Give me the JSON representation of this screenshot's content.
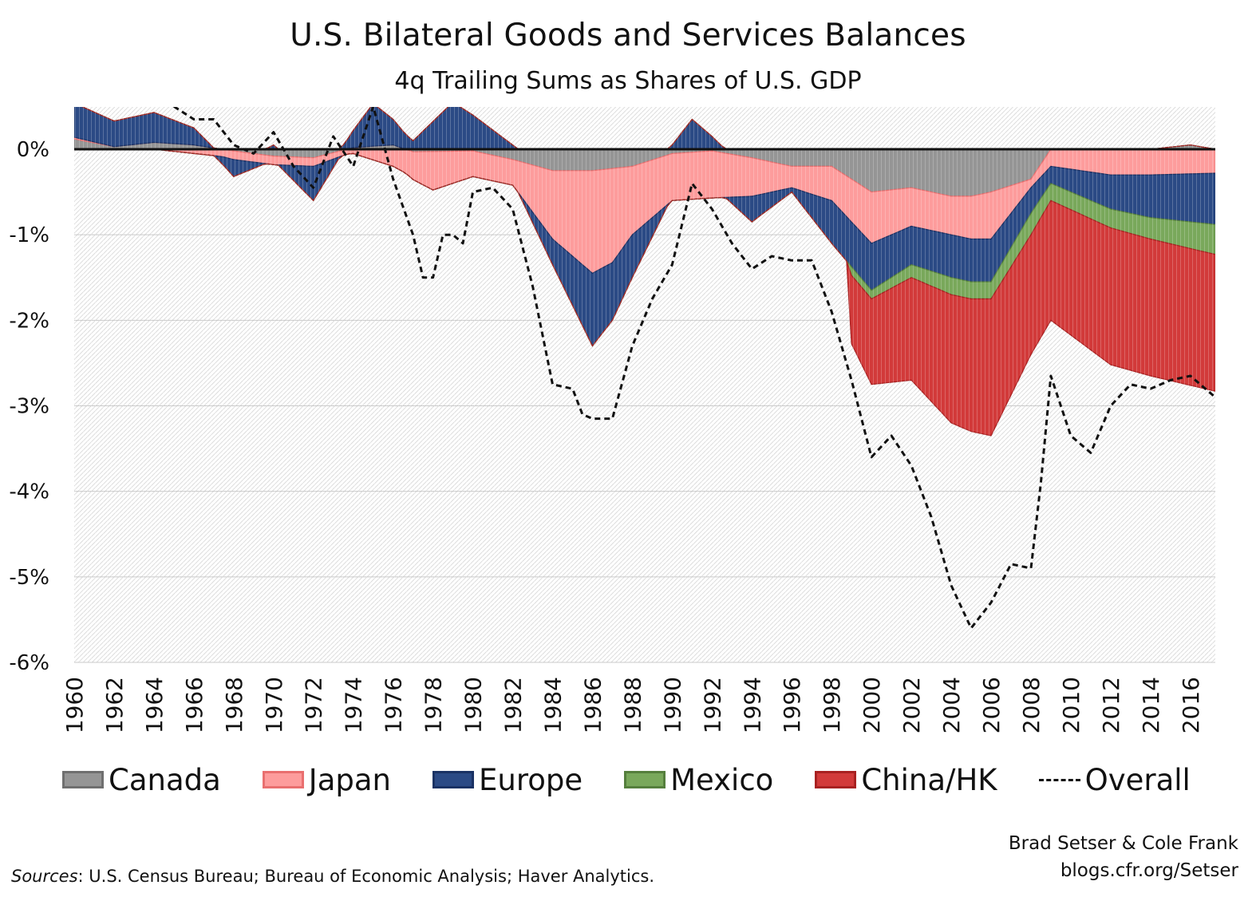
{
  "chart_data": {
    "type": "area",
    "title": "U.S. Bilateral Goods and Services Balances",
    "subtitle": "4q Trailing Sums as Shares of U.S. GDP",
    "xlabel": "",
    "ylabel": "",
    "ylim": [
      -6,
      0.5
    ],
    "xlim": [
      1960,
      2017.25
    ],
    "yticks": [
      "0%",
      "-1%",
      "-2%",
      "-3%",
      "-4%",
      "-5%",
      "-6%"
    ],
    "ytick_values": [
      0,
      -1,
      -2,
      -3,
      -4,
      -5,
      -6
    ],
    "xticks": [
      "1960",
      "1962",
      "1964",
      "1966",
      "1968",
      "1970",
      "1972",
      "1974",
      "1976",
      "1978",
      "1980",
      "1982",
      "1984",
      "1986",
      "1988",
      "1990",
      "1992",
      "1994",
      "1996",
      "1998",
      "2000",
      "2002",
      "2004",
      "2006",
      "2008",
      "2010",
      "2012",
      "2014",
      "2016"
    ],
    "stacked": true,
    "grid": true,
    "legend_position": "bottom",
    "series": [
      {
        "name": "Canada",
        "color": "#959595",
        "edge": "#6f6f6f",
        "points": [
          [
            1960,
            0.12
          ],
          [
            1962,
            0.03
          ],
          [
            1964,
            0.08
          ],
          [
            1966,
            0.05
          ],
          [
            1968,
            -0.02
          ],
          [
            1970,
            -0.08
          ],
          [
            1972,
            -0.1
          ],
          [
            1974,
            0.02
          ],
          [
            1976,
            0.05
          ],
          [
            1977,
            -0.03
          ],
          [
            1980,
            -0.02
          ],
          [
            1982,
            -0.12
          ],
          [
            1984,
            -0.25
          ],
          [
            1986,
            -0.25
          ],
          [
            1988,
            -0.2
          ],
          [
            1990,
            -0.05
          ],
          [
            1992,
            -0.02
          ],
          [
            1994,
            -0.1
          ],
          [
            1996,
            -0.2
          ],
          [
            1998,
            -0.2
          ],
          [
            2000,
            -0.5
          ],
          [
            2002,
            -0.45
          ],
          [
            2004,
            -0.55
          ],
          [
            2005,
            -0.55
          ],
          [
            2006,
            -0.5
          ],
          [
            2008,
            -0.35
          ],
          [
            2009,
            0.0
          ],
          [
            2012,
            0.0
          ],
          [
            2014,
            0.0
          ],
          [
            2016,
            0.05
          ],
          [
            2017.25,
            0.0
          ]
        ]
      },
      {
        "name": "Japan",
        "color": "#fd9c9c",
        "edge": "#e96f6f",
        "points": [
          [
            1960,
            0.02
          ],
          [
            1962,
            0.0
          ],
          [
            1964,
            0.0
          ],
          [
            1966,
            -0.05
          ],
          [
            1968,
            -0.1
          ],
          [
            1970,
            -0.1
          ],
          [
            1972,
            -0.1
          ],
          [
            1974,
            -0.05
          ],
          [
            1976,
            -0.2
          ],
          [
            1978,
            -0.45
          ],
          [
            1980,
            -0.3
          ],
          [
            1982,
            -0.3
          ],
          [
            1984,
            -0.8
          ],
          [
            1986,
            -1.2
          ],
          [
            1987,
            -1.1
          ],
          [
            1988,
            -0.8
          ],
          [
            1990,
            -0.55
          ],
          [
            1992,
            -0.55
          ],
          [
            1994,
            -0.45
          ],
          [
            1996,
            -0.25
          ],
          [
            1998,
            -0.4
          ],
          [
            2000,
            -0.6
          ],
          [
            2002,
            -0.45
          ],
          [
            2004,
            -0.45
          ],
          [
            2006,
            -0.55
          ],
          [
            2008,
            -0.1
          ],
          [
            2009,
            -0.2
          ],
          [
            2012,
            -0.3
          ],
          [
            2014,
            -0.3
          ],
          [
            2017.25,
            -0.28
          ]
        ]
      },
      {
        "name": "Europe",
        "color": "#2b4a85",
        "edge": "#1a3264",
        "points": [
          [
            1960,
            0.4
          ],
          [
            1962,
            0.3
          ],
          [
            1964,
            0.35
          ],
          [
            1966,
            0.2
          ],
          [
            1968,
            -0.2
          ],
          [
            1970,
            0.05
          ],
          [
            1972,
            -0.4
          ],
          [
            1974,
            0.2
          ],
          [
            1975,
            0.5
          ],
          [
            1977,
            0.1
          ],
          [
            1979,
            0.55
          ],
          [
            1980,
            0.4
          ],
          [
            1982,
            0.05
          ],
          [
            1984,
            -0.3
          ],
          [
            1986,
            -0.85
          ],
          [
            1988,
            -0.5
          ],
          [
            1990,
            0.05
          ],
          [
            1991,
            0.35
          ],
          [
            1992,
            0.15
          ],
          [
            1994,
            -0.3
          ],
          [
            1996,
            -0.05
          ],
          [
            1998,
            -0.5
          ],
          [
            2000,
            -0.55
          ],
          [
            2002,
            -0.45
          ],
          [
            2004,
            -0.5
          ],
          [
            2006,
            -0.5
          ],
          [
            2008,
            -0.3
          ],
          [
            2009,
            -0.2
          ],
          [
            2012,
            -0.4
          ],
          [
            2014,
            -0.5
          ],
          [
            2017.25,
            -0.6
          ]
        ]
      },
      {
        "name": "Mexico",
        "color": "#79a85b",
        "edge": "#557f3d",
        "points": [
          [
            1999,
            -0.1
          ],
          [
            2000,
            -0.1
          ],
          [
            2002,
            -0.15
          ],
          [
            2004,
            -0.2
          ],
          [
            2006,
            -0.2
          ],
          [
            2008,
            -0.25
          ],
          [
            2009,
            -0.2
          ],
          [
            2012,
            -0.22
          ],
          [
            2014,
            -0.25
          ],
          [
            2017.25,
            -0.35
          ]
        ]
      },
      {
        "name": "China/HK",
        "color": "#d23a3a",
        "edge": "#a82121",
        "points": [
          [
            1999,
            -0.8
          ],
          [
            2000,
            -1.0
          ],
          [
            2002,
            -1.2
          ],
          [
            2004,
            -1.5
          ],
          [
            2006,
            -1.6
          ],
          [
            2008,
            -1.4
          ],
          [
            2009,
            -1.4
          ],
          [
            2012,
            -1.6
          ],
          [
            2014,
            -1.6
          ],
          [
            2017.25,
            -1.6
          ]
        ]
      }
    ],
    "overall": {
      "name": "Overall",
      "color": "#111111",
      "style": "dashed",
      "points": [
        [
          1965,
          0.5
        ],
        [
          1966,
          0.35
        ],
        [
          1967,
          0.35
        ],
        [
          1968,
          0.05
        ],
        [
          1969,
          -0.05
        ],
        [
          1970,
          0.2
        ],
        [
          1971,
          -0.2
        ],
        [
          1972,
          -0.45
        ],
        [
          1973,
          0.15
        ],
        [
          1974,
          -0.2
        ],
        [
          1975,
          0.5
        ],
        [
          1976,
          -0.35
        ],
        [
          1977,
          -1.0
        ],
        [
          1977.5,
          -1.5
        ],
        [
          1978,
          -1.5
        ],
        [
          1978.5,
          -1.0
        ],
        [
          1979,
          -1.0
        ],
        [
          1979.5,
          -1.1
        ],
        [
          1980,
          -0.5
        ],
        [
          1981,
          -0.45
        ],
        [
          1982,
          -0.7
        ],
        [
          1983,
          -1.6
        ],
        [
          1984,
          -2.75
        ],
        [
          1985,
          -2.8
        ],
        [
          1985.5,
          -3.1
        ],
        [
          1986,
          -3.15
        ],
        [
          1987,
          -3.15
        ],
        [
          1988,
          -2.3
        ],
        [
          1989,
          -1.75
        ],
        [
          1990,
          -1.35
        ],
        [
          1991,
          -0.4
        ],
        [
          1992,
          -0.7
        ],
        [
          1993,
          -1.1
        ],
        [
          1994,
          -1.4
        ],
        [
          1995,
          -1.25
        ],
        [
          1996,
          -1.3
        ],
        [
          1997,
          -1.3
        ],
        [
          1998,
          -1.9
        ],
        [
          1999,
          -2.7
        ],
        [
          2000,
          -3.6
        ],
        [
          2001,
          -3.35
        ],
        [
          2002,
          -3.7
        ],
        [
          2003,
          -4.3
        ],
        [
          2004,
          -5.1
        ],
        [
          2005,
          -5.6
        ],
        [
          2006,
          -5.3
        ],
        [
          2007,
          -4.85
        ],
        [
          2008,
          -4.9
        ],
        [
          2008.5,
          -3.9
        ],
        [
          2009,
          -2.65
        ],
        [
          2010,
          -3.35
        ],
        [
          2011,
          -3.55
        ],
        [
          2012,
          -3.0
        ],
        [
          2013,
          -2.75
        ],
        [
          2014,
          -2.8
        ],
        [
          2015,
          -2.7
        ],
        [
          2016,
          -2.65
        ],
        [
          2017.25,
          -2.9
        ]
      ]
    }
  },
  "legend": {
    "canada": "Canada",
    "japan": "Japan",
    "europe": "Europe",
    "mexico": "Mexico",
    "china": "China/HK",
    "overall": "Overall"
  },
  "credit": {
    "authors": "Brad Setser & Cole Frank",
    "site": "blogs.cfr.org/Setser"
  },
  "sources": {
    "label": "Sources",
    "text": ": U.S. Census Bureau; Bureau of Economic Analysis; Haver Analytics."
  }
}
